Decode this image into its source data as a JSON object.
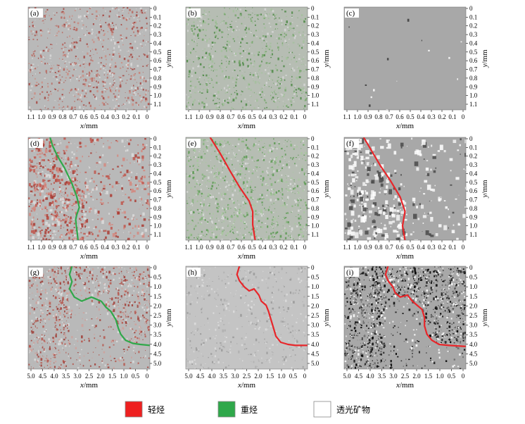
{
  "panels": [
    {
      "tag": "(a)",
      "style": "red_speckle",
      "boundary": "none"
    },
    {
      "tag": "(b)",
      "style": "green_speckle",
      "boundary": "none"
    },
    {
      "tag": "(c)",
      "style": "gray_sparse",
      "boundary": "none"
    },
    {
      "tag": "(d)",
      "style": "red_dense",
      "boundary": "green"
    },
    {
      "tag": "(e)",
      "style": "green_light",
      "boundary": "red"
    },
    {
      "tag": "(f)",
      "style": "gray_white_patches",
      "boundary": "red"
    },
    {
      "tag": "(g)",
      "style": "red_speckle_wide",
      "boundary": "green"
    },
    {
      "tag": "(h)",
      "style": "gray_light",
      "boundary": "red"
    },
    {
      "tag": "(i)",
      "style": "gray_black_speckle",
      "boundary": "red"
    }
  ],
  "rows": [
    {
      "x_ticks": [
        "1.1",
        "1.0",
        "0.9",
        "0.8",
        "0.7",
        "0.6",
        "0.5",
        "0.4",
        "0.3",
        "0.2",
        "0.1",
        "0"
      ],
      "y_ticks": [
        "0",
        "0.1",
        "0.2",
        "0.3",
        "0.4",
        "0.5",
        "0.6",
        "0.7",
        "0.8",
        "0.9",
        "1.0",
        "1.1"
      ]
    },
    {
      "x_ticks": [
        "1.1",
        "1.0",
        "0.9",
        "0.8",
        "0.7",
        "0.6",
        "0.5",
        "0.4",
        "0.3",
        "0.2",
        "0.1",
        "0"
      ],
      "y_ticks": [
        "0",
        "0.1",
        "0.2",
        "0.3",
        "0.4",
        "0.5",
        "0.6",
        "0.7",
        "0.8",
        "0.9",
        "1.0",
        "1.1"
      ]
    },
    {
      "x_ticks": [
        "5.0",
        "4.5",
        "4.0",
        "3.5",
        "3.0",
        "2.5",
        "2.0",
        "1.5",
        "1.0",
        "0.5",
        "0"
      ],
      "y_ticks": [
        "0",
        "0.5",
        "1.0",
        "1.5",
        "2.0",
        "2.5",
        "3.0",
        "3.5",
        "4.0",
        "4.5",
        "5.0"
      ]
    }
  ],
  "axis": {
    "x_label_italic": "x",
    "x_label_unit": "/mm",
    "y_label_italic": "y",
    "y_label_unit": "/mm"
  },
  "legend": [
    {
      "label": "轻烃",
      "color": "#ee2020"
    },
    {
      "label": "重烃",
      "color": "#2fa84a"
    },
    {
      "label": "透光矿物",
      "color": "#ffffff"
    }
  ],
  "colors": {
    "red_boundary": "#e8262a",
    "green_boundary": "#2fa84a",
    "panel_gray": "#a8a8a8"
  }
}
